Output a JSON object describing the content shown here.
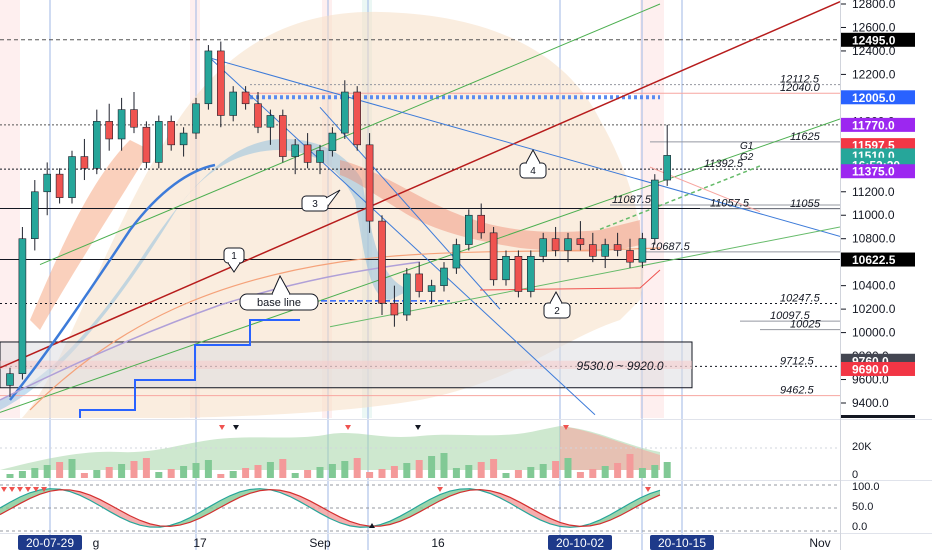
{
  "chart_data": {
    "type": "candlestick",
    "title": "",
    "y_axis": {
      "ylim": [
        9300,
        12850
      ],
      "ticks": [
        9400,
        9600,
        9800,
        10000,
        10200,
        10400,
        10600,
        10800,
        11000,
        11200,
        11400,
        11600,
        11800,
        12000,
        12200,
        12400,
        12600,
        12800
      ],
      "tick_labels": [
        "9400.0",
        "9600.0",
        "9800.0",
        "10000.0",
        "10200.0",
        "10400.0",
        "10600.0",
        "10800.0",
        "11000.0",
        "11200.0",
        "11400.0",
        "11600.0",
        "11800.0",
        "12000.0",
        "12200.0",
        "12400.0",
        "12600.0",
        "12800.0"
      ]
    },
    "x_axis": {
      "tick_labels": [
        "20-07-29",
        "g",
        "17",
        "Sep",
        "16",
        "20-10-02",
        "20-10-15",
        "Nov"
      ],
      "highlighted_labels": [
        "20-07-29",
        "20-10-02",
        "20-10-15"
      ]
    },
    "price_badges": [
      {
        "label": "12495.0",
        "value": 12495,
        "color": "#000000"
      },
      {
        "label": "12005.0",
        "value": 12005,
        "color": "#2962ff"
      },
      {
        "label": "11770.0",
        "value": 11770,
        "color": "#9c27f0"
      },
      {
        "label": "11597.5",
        "value": 11597.5,
        "color": "#f23645"
      },
      {
        "label": "11510.0",
        "value": 11510,
        "color": "#26a69a"
      },
      {
        "label": "16:52:20",
        "value": 11430,
        "color": "#26a69a"
      },
      {
        "label": "11375.0",
        "value": 11375,
        "color": "#9c27f0"
      },
      {
        "label": "10622.5",
        "value": 10622.5,
        "color": "#000000"
      },
      {
        "label": "9760.0",
        "value": 9760,
        "color": "#434651"
      },
      {
        "label": "9690.0",
        "value": 9690,
        "color": "#f23645"
      }
    ],
    "level_lines": [
      {
        "label": "12112.5",
        "value": 12112.5
      },
      {
        "label": "12040.0",
        "value": 12040
      },
      {
        "label": "11625",
        "value": 11625
      },
      {
        "label": "11392.5",
        "value": 11392.5
      },
      {
        "label": "11087.5",
        "value": 11087.5
      },
      {
        "label": "11057.5",
        "value": 11057.5
      },
      {
        "label": "11055",
        "value": 11055
      },
      {
        "label": "10687.5",
        "value": 10687.5
      },
      {
        "label": "10247.5",
        "value": 10247.5
      },
      {
        "label": "10097.5",
        "value": 10097.5
      },
      {
        "label": "10025",
        "value": 10025
      },
      {
        "label": "9712.5",
        "value": 9712.5
      },
      {
        "label": "9462.5",
        "value": 9462.5
      }
    ],
    "annotations": {
      "range_box": "9530.0 ~ 9920.0",
      "base_line": "base line",
      "g1": "G1",
      "g2": "G2",
      "callouts": [
        "1",
        "2",
        "3",
        "4"
      ]
    },
    "series": [
      {
        "name": "",
        "ohlc": [
          [
            9550,
            9700,
            9450,
            9650
          ],
          [
            9650,
            10900,
            9600,
            10800
          ],
          [
            10800,
            11300,
            10700,
            11200
          ],
          [
            11200,
            11450,
            11000,
            11350
          ],
          [
            11350,
            11400,
            11100,
            11150
          ],
          [
            11150,
            11550,
            11100,
            11500
          ],
          [
            11500,
            11650,
            11300,
            11400
          ],
          [
            11400,
            11900,
            11350,
            11800
          ],
          [
            11800,
            11950,
            11550,
            11650
          ],
          [
            11650,
            12000,
            11550,
            11900
          ],
          [
            11900,
            12050,
            11700,
            11750
          ],
          [
            11750,
            11800,
            11400,
            11450
          ],
          [
            11450,
            11850,
            11400,
            11800
          ],
          [
            11800,
            11850,
            11550,
            11600
          ],
          [
            11600,
            11750,
            11500,
            11700
          ],
          [
            11700,
            12000,
            11650,
            11950
          ],
          [
            11950,
            12450,
            11900,
            12400
          ],
          [
            12400,
            12480,
            11750,
            11850
          ],
          [
            11850,
            12100,
            11800,
            12050
          ],
          [
            12050,
            12100,
            11900,
            11950
          ],
          [
            11950,
            12050,
            11700,
            11750
          ],
          [
            11750,
            11900,
            11600,
            11850
          ],
          [
            11850,
            11900,
            11450,
            11500
          ],
          [
            11500,
            11650,
            11350,
            11600
          ],
          [
            11600,
            11700,
            11400,
            11450
          ],
          [
            11450,
            11600,
            11350,
            11550
          ],
          [
            11550,
            11750,
            11500,
            11700
          ],
          [
            11700,
            12150,
            11650,
            12050
          ],
          [
            12050,
            12100,
            11550,
            11600
          ],
          [
            11600,
            11700,
            10850,
            10950
          ],
          [
            10950,
            11000,
            10150,
            10250
          ],
          [
            10250,
            10400,
            10050,
            10150
          ],
          [
            10150,
            10550,
            10100,
            10500
          ],
          [
            10500,
            10600,
            10300,
            10350
          ],
          [
            10350,
            10450,
            10250,
            10400
          ],
          [
            10400,
            10600,
            10350,
            10550
          ],
          [
            10550,
            10800,
            10500,
            10750
          ],
          [
            10750,
            11050,
            10700,
            11000
          ],
          [
            11000,
            11100,
            10800,
            10850
          ],
          [
            10850,
            10900,
            10400,
            10450
          ],
          [
            10450,
            10700,
            10400,
            10650
          ],
          [
            10650,
            10700,
            10300,
            10350
          ],
          [
            10350,
            10700,
            10300,
            10650
          ],
          [
            10650,
            10850,
            10600,
            10800
          ],
          [
            10800,
            10900,
            10650,
            10700
          ],
          [
            10700,
            10850,
            10600,
            10800
          ],
          [
            10800,
            10950,
            10700,
            10750
          ],
          [
            10750,
            10850,
            10600,
            10650
          ],
          [
            10650,
            10800,
            10550,
            10750
          ],
          [
            10750,
            10850,
            10650,
            10700
          ],
          [
            10700,
            10800,
            10550,
            10600
          ],
          [
            10600,
            10850,
            10550,
            10800
          ],
          [
            10800,
            11350,
            10750,
            11300
          ],
          [
            11300,
            11770,
            11250,
            11510
          ]
        ]
      }
    ]
  },
  "lower_panels": {
    "volume": {
      "tick_labels": [
        "20K",
        "0"
      ],
      "ticks": [
        20000,
        0
      ]
    },
    "oscillator": {
      "tick_labels": [
        "100.0",
        "50.0",
        "0.0"
      ],
      "ticks": [
        100,
        50,
        0
      ]
    }
  },
  "colors": {
    "up": "#26a69a",
    "down": "#ef5350",
    "trend_red": "#b71c1c",
    "trend_green": "#4caf50",
    "trend_blue": "#3d7bd9"
  }
}
